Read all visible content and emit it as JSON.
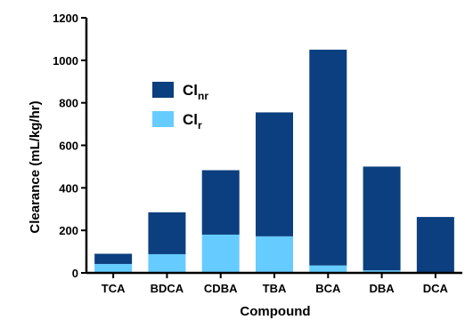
{
  "chart_data": {
    "type": "bar",
    "stacked": true,
    "categories": [
      "TCA",
      "BDCA",
      "CDBA",
      "TBA",
      "BCA",
      "DBA",
      "DCA"
    ],
    "series": [
      {
        "name": "Cl_r",
        "label_main": "Cl",
        "label_sub": "r",
        "color": "#66ccff",
        "values": [
          42,
          88,
          180,
          172,
          35,
          12,
          0
        ]
      },
      {
        "name": "Cl_nr",
        "label_main": "Cl",
        "label_sub": "nr",
        "color": "#0b3f7f",
        "values": [
          48,
          197,
          303,
          583,
          1015,
          488,
          263
        ]
      }
    ],
    "title": "",
    "xlabel": "Compound",
    "ylabel": "Clearance (mL/kg/hr)",
    "ylim": [
      0,
      1200
    ],
    "yticks": [
      0,
      200,
      400,
      600,
      800,
      1000,
      1200
    ],
    "grid": false,
    "legend_position": "top-left"
  }
}
